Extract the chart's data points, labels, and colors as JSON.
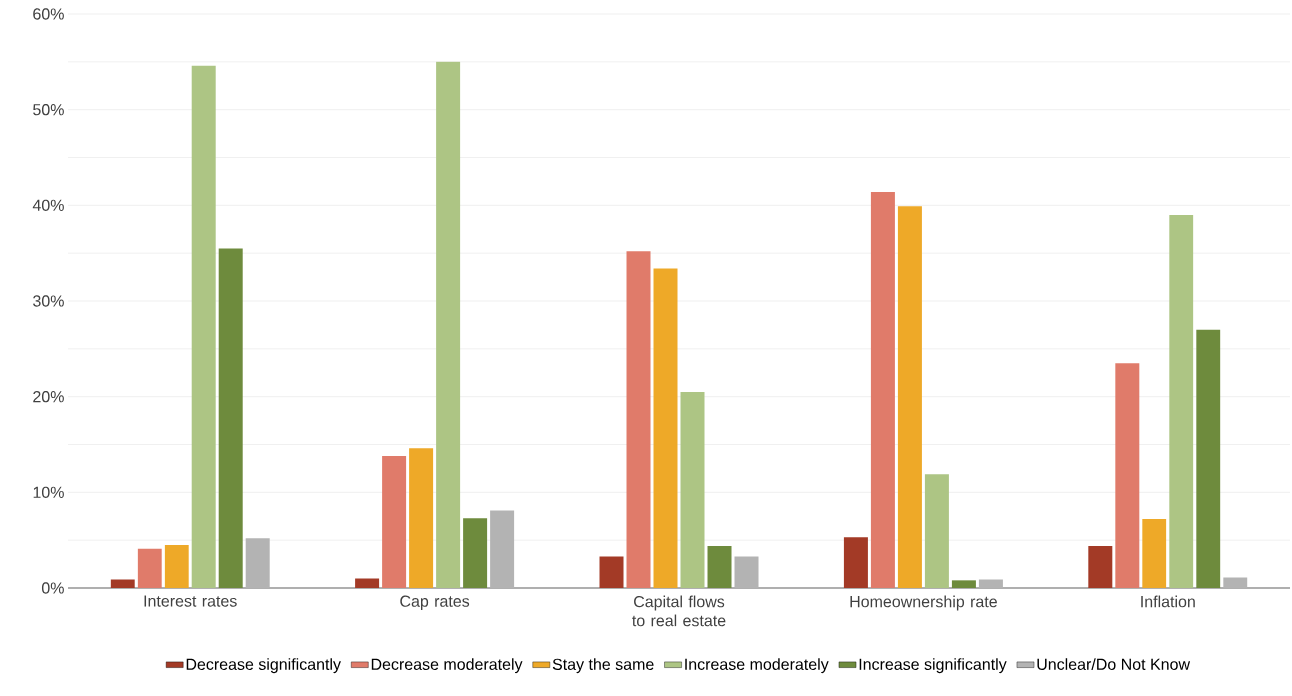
{
  "chart_data": {
    "type": "bar",
    "categories": [
      "Interest rates",
      "Cap rates",
      "Capital flows to real estate",
      "Homeownership rate",
      "Inflation"
    ],
    "series": [
      {
        "name": "Decrease significantly",
        "color": "#a33a26",
        "values": [
          0.9,
          1.0,
          3.3,
          5.3,
          4.4
        ]
      },
      {
        "name": "Decrease moderately",
        "color": "#e07b6a",
        "values": [
          4.1,
          13.8,
          35.2,
          41.4,
          23.5
        ]
      },
      {
        "name": "Stay the same",
        "color": "#eea928",
        "values": [
          4.5,
          14.6,
          33.4,
          39.9,
          7.2
        ]
      },
      {
        "name": "Increase moderately",
        "color": "#adc584",
        "values": [
          54.6,
          55.0,
          20.5,
          11.9,
          39.0
        ]
      },
      {
        "name": "Increase significantly",
        "color": "#6e8b3d",
        "values": [
          35.5,
          7.3,
          4.4,
          0.8,
          27.0
        ]
      },
      {
        "name": "Unclear/Do Not Know",
        "color": "#b3b3b3",
        "values": [
          5.2,
          8.1,
          3.3,
          0.9,
          1.1
        ]
      }
    ],
    "ylim": [
      0,
      60
    ],
    "yticks": [
      {
        "value": 0,
        "label": "0%"
      },
      {
        "value": 5,
        "label": null
      },
      {
        "value": 10,
        "label": "10%"
      },
      {
        "value": 15,
        "label": null
      },
      {
        "value": 20,
        "label": "20%"
      },
      {
        "value": 25,
        "label": null
      },
      {
        "value": 30,
        "label": "30%"
      },
      {
        "value": 35,
        "label": null
      },
      {
        "value": 40,
        "label": "40%"
      },
      {
        "value": 45,
        "label": null
      },
      {
        "value": 50,
        "label": "50%"
      },
      {
        "value": 55,
        "label": null
      },
      {
        "value": 60,
        "label": "60%"
      }
    ],
    "grid": "y",
    "legend": "bottom"
  }
}
